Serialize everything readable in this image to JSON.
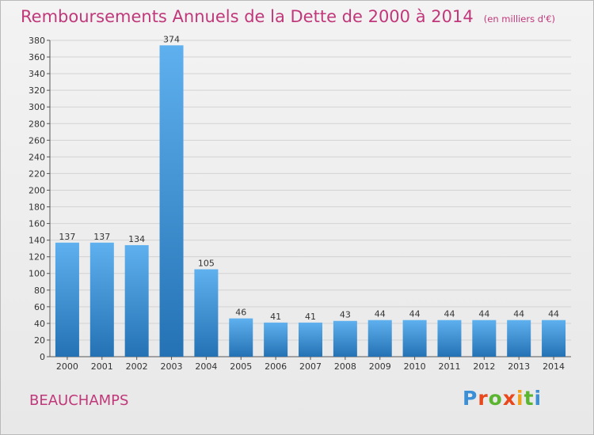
{
  "header": {
    "title": "Remboursements Annuels de la Dette de 2000 à 2014",
    "subtitle": "(en milliers d'€)"
  },
  "footer": {
    "town": "BEAUCHAMPS",
    "brand": "Proxiti"
  },
  "colors": {
    "title": "#c0387a",
    "bar_top": "#5fb0ee",
    "bar_bottom": "#2472b4",
    "grid": "#d2d2d2",
    "axis": "#555555"
  },
  "chart_data": {
    "type": "bar",
    "title": "Remboursements Annuels de la Dette de 2000 à 2014",
    "subtitle": "(en milliers d'€)",
    "xlabel": "",
    "ylabel": "",
    "categories": [
      "2000",
      "2001",
      "2002",
      "2003",
      "2004",
      "2005",
      "2006",
      "2007",
      "2008",
      "2009",
      "2010",
      "2011",
      "2012",
      "2013",
      "2014"
    ],
    "values": [
      137,
      137,
      134,
      374,
      105,
      46,
      41,
      41,
      43,
      44,
      44,
      44,
      44,
      44,
      44
    ],
    "ylim": [
      0,
      380
    ],
    "ytick_step": 20,
    "grid": true,
    "legend": "none"
  }
}
